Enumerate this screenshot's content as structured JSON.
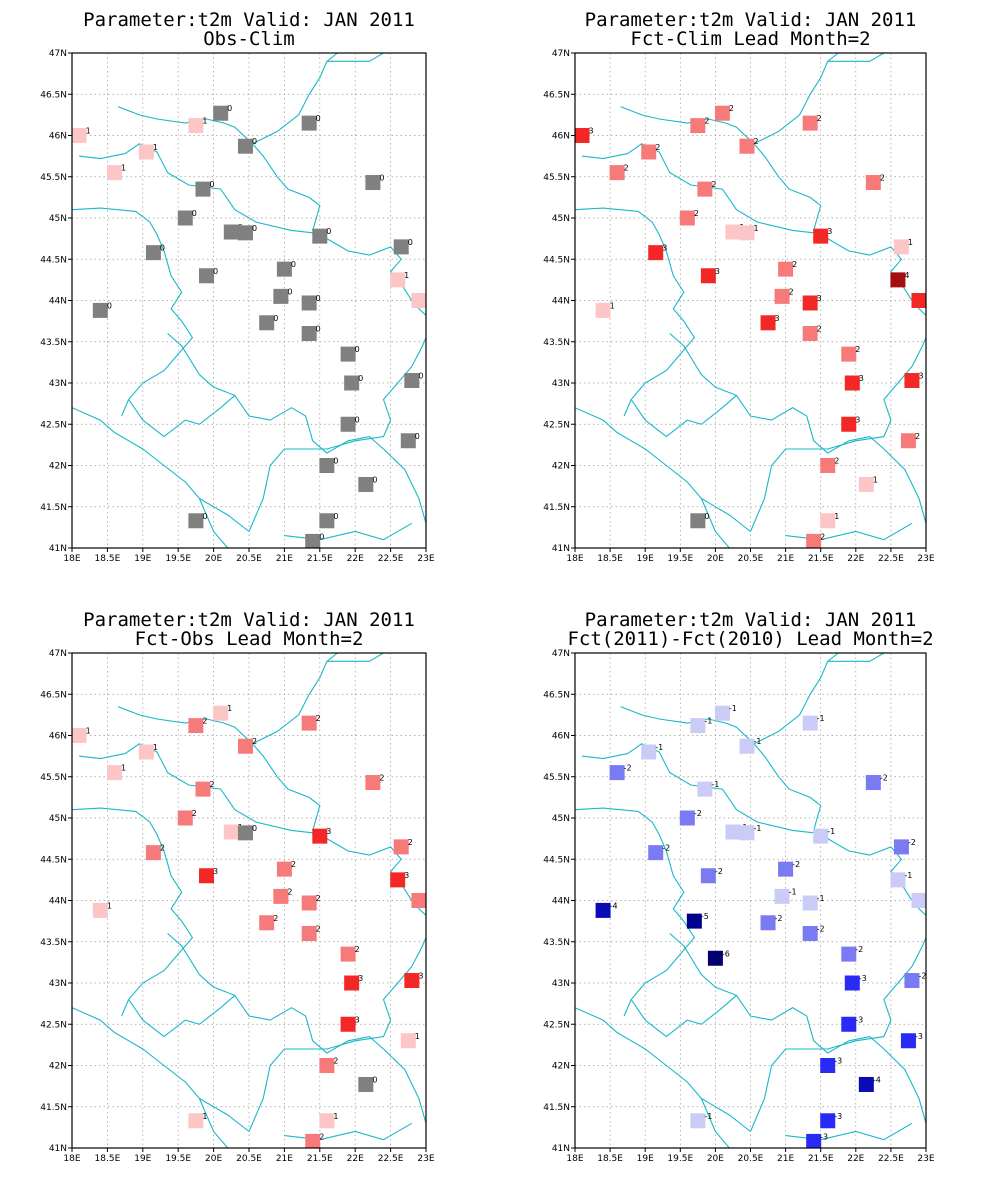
{
  "lon_ticks": [
    "18E",
    "18.5E",
    "19E",
    "19.5E",
    "20E",
    "20.5E",
    "21E",
    "21.5E",
    "22E",
    "22.5E",
    "23E"
  ],
  "lat_ticks": [
    "47N",
    "46.5N",
    "46N",
    "45.5N",
    "45N",
    "44.5N",
    "44N",
    "43.5N",
    "43N",
    "42.5N",
    "42N",
    "41.5N",
    "41N"
  ],
  "chart_data": [
    {
      "type": "scatter",
      "title": "Parameter:t2m Valid: JAN 2011",
      "subtitle": "Obs-Clim",
      "xlim": [
        18,
        23
      ],
      "ylim": [
        41,
        47
      ],
      "grid": true,
      "points": [
        {
          "lon": 18.1,
          "lat": 46.0,
          "v": 1
        },
        {
          "lon": 18.6,
          "lat": 45.55,
          "v": 1
        },
        {
          "lon": 19.05,
          "lat": 45.8,
          "v": 1
        },
        {
          "lon": 19.75,
          "lat": 46.12,
          "v": 1
        },
        {
          "lon": 20.1,
          "lat": 46.27,
          "v": 0
        },
        {
          "lon": 20.45,
          "lat": 45.87,
          "v": 0
        },
        {
          "lon": 21.35,
          "lat": 46.15,
          "v": 0
        },
        {
          "lon": 19.85,
          "lat": 45.35,
          "v": 0
        },
        {
          "lon": 22.25,
          "lat": 45.43,
          "v": 0
        },
        {
          "lon": 19.6,
          "lat": 45.0,
          "v": 0
        },
        {
          "lon": 20.25,
          "lat": 44.83,
          "v": 0
        },
        {
          "lon": 20.45,
          "lat": 44.82,
          "v": 0
        },
        {
          "lon": 21.5,
          "lat": 44.78,
          "v": 0
        },
        {
          "lon": 22.65,
          "lat": 44.65,
          "v": 0
        },
        {
          "lon": 19.15,
          "lat": 44.58,
          "v": 0
        },
        {
          "lon": 19.9,
          "lat": 44.3,
          "v": 0
        },
        {
          "lon": 21.0,
          "lat": 44.38,
          "v": 0
        },
        {
          "lon": 22.6,
          "lat": 44.25,
          "v": 1
        },
        {
          "lon": 22.9,
          "lat": 44.0,
          "v": 1
        },
        {
          "lon": 18.4,
          "lat": 43.88,
          "v": 0
        },
        {
          "lon": 20.95,
          "lat": 44.05,
          "v": 0
        },
        {
          "lon": 21.35,
          "lat": 43.97,
          "v": 0
        },
        {
          "lon": 20.75,
          "lat": 43.73,
          "v": 0
        },
        {
          "lon": 21.35,
          "lat": 43.6,
          "v": 0
        },
        {
          "lon": 21.9,
          "lat": 43.35,
          "v": 0
        },
        {
          "lon": 21.95,
          "lat": 43.0,
          "v": 0
        },
        {
          "lon": 22.8,
          "lat": 43.03,
          "v": 0
        },
        {
          "lon": 21.9,
          "lat": 42.5,
          "v": 0
        },
        {
          "lon": 22.75,
          "lat": 42.3,
          "v": 0
        },
        {
          "lon": 21.6,
          "lat": 42.0,
          "v": 0
        },
        {
          "lon": 22.15,
          "lat": 41.77,
          "v": 0
        },
        {
          "lon": 19.75,
          "lat": 41.33,
          "v": 0
        },
        {
          "lon": 21.6,
          "lat": 41.33,
          "v": 0
        },
        {
          "lon": 21.4,
          "lat": 41.08,
          "v": 0
        }
      ]
    },
    {
      "type": "scatter",
      "title": "Parameter:t2m Valid: JAN 2011",
      "subtitle": "Fct-Clim Lead Month=2",
      "xlim": [
        18,
        23
      ],
      "ylim": [
        41,
        47
      ],
      "grid": true,
      "points": [
        {
          "lon": 18.1,
          "lat": 46.0,
          "v": 3
        },
        {
          "lon": 18.6,
          "lat": 45.55,
          "v": 2
        },
        {
          "lon": 19.05,
          "lat": 45.8,
          "v": 2
        },
        {
          "lon": 19.75,
          "lat": 46.12,
          "v": 2
        },
        {
          "lon": 20.1,
          "lat": 46.27,
          "v": 2
        },
        {
          "lon": 20.45,
          "lat": 45.87,
          "v": 2
        },
        {
          "lon": 21.35,
          "lat": 46.15,
          "v": 2
        },
        {
          "lon": 19.85,
          "lat": 45.35,
          "v": 2
        },
        {
          "lon": 22.25,
          "lat": 45.43,
          "v": 2
        },
        {
          "lon": 19.6,
          "lat": 45.0,
          "v": 2
        },
        {
          "lon": 20.25,
          "lat": 44.83,
          "v": 1
        },
        {
          "lon": 20.45,
          "lat": 44.82,
          "v": 1
        },
        {
          "lon": 21.5,
          "lat": 44.78,
          "v": 3
        },
        {
          "lon": 22.65,
          "lat": 44.65,
          "v": 1
        },
        {
          "lon": 19.15,
          "lat": 44.58,
          "v": 3
        },
        {
          "lon": 19.9,
          "lat": 44.3,
          "v": 3
        },
        {
          "lon": 21.0,
          "lat": 44.38,
          "v": 2
        },
        {
          "lon": 22.6,
          "lat": 44.25,
          "v": 4
        },
        {
          "lon": 22.9,
          "lat": 44.0,
          "v": 3
        },
        {
          "lon": 18.4,
          "lat": 43.88,
          "v": 1
        },
        {
          "lon": 20.95,
          "lat": 44.05,
          "v": 2
        },
        {
          "lon": 21.35,
          "lat": 43.97,
          "v": 3
        },
        {
          "lon": 20.75,
          "lat": 43.73,
          "v": 3
        },
        {
          "lon": 21.35,
          "lat": 43.6,
          "v": 2
        },
        {
          "lon": 21.9,
          "lat": 43.35,
          "v": 2
        },
        {
          "lon": 21.95,
          "lat": 43.0,
          "v": 3
        },
        {
          "lon": 22.8,
          "lat": 43.03,
          "v": 3
        },
        {
          "lon": 21.9,
          "lat": 42.5,
          "v": 3
        },
        {
          "lon": 22.75,
          "lat": 42.3,
          "v": 2
        },
        {
          "lon": 21.6,
          "lat": 42.0,
          "v": 2
        },
        {
          "lon": 22.15,
          "lat": 41.77,
          "v": 1
        },
        {
          "lon": 19.75,
          "lat": 41.33,
          "v": 0
        },
        {
          "lon": 21.6,
          "lat": 41.33,
          "v": 1
        },
        {
          "lon": 21.4,
          "lat": 41.08,
          "v": 2
        }
      ]
    },
    {
      "type": "scatter",
      "title": "Parameter:t2m Valid: JAN 2011",
      "subtitle": "Fct-Obs Lead Month=2",
      "xlim": [
        18,
        23
      ],
      "ylim": [
        41,
        47
      ],
      "grid": true,
      "points": [
        {
          "lon": 18.1,
          "lat": 46.0,
          "v": 1
        },
        {
          "lon": 18.6,
          "lat": 45.55,
          "v": 1
        },
        {
          "lon": 19.05,
          "lat": 45.8,
          "v": 1
        },
        {
          "lon": 19.75,
          "lat": 46.12,
          "v": 2
        },
        {
          "lon": 20.1,
          "lat": 46.27,
          "v": 1
        },
        {
          "lon": 20.45,
          "lat": 45.87,
          "v": 2
        },
        {
          "lon": 21.35,
          "lat": 46.15,
          "v": 2
        },
        {
          "lon": 19.85,
          "lat": 45.35,
          "v": 2
        },
        {
          "lon": 22.25,
          "lat": 45.43,
          "v": 2
        },
        {
          "lon": 19.6,
          "lat": 45.0,
          "v": 2
        },
        {
          "lon": 20.25,
          "lat": 44.83,
          "v": 1
        },
        {
          "lon": 20.45,
          "lat": 44.82,
          "v": 0
        },
        {
          "lon": 21.5,
          "lat": 44.78,
          "v": 3
        },
        {
          "lon": 22.65,
          "lat": 44.65,
          "v": 2
        },
        {
          "lon": 19.15,
          "lat": 44.58,
          "v": 2
        },
        {
          "lon": 19.9,
          "lat": 44.3,
          "v": 3
        },
        {
          "lon": 21.0,
          "lat": 44.38,
          "v": 2
        },
        {
          "lon": 22.6,
          "lat": 44.25,
          "v": 3
        },
        {
          "lon": 22.9,
          "lat": 44.0,
          "v": 2
        },
        {
          "lon": 18.4,
          "lat": 43.88,
          "v": 1
        },
        {
          "lon": 20.95,
          "lat": 44.05,
          "v": 2
        },
        {
          "lon": 21.35,
          "lat": 43.97,
          "v": 2
        },
        {
          "lon": 20.75,
          "lat": 43.73,
          "v": 2
        },
        {
          "lon": 21.35,
          "lat": 43.6,
          "v": 2
        },
        {
          "lon": 21.9,
          "lat": 43.35,
          "v": 2
        },
        {
          "lon": 21.95,
          "lat": 43.0,
          "v": 3
        },
        {
          "lon": 22.8,
          "lat": 43.03,
          "v": 3
        },
        {
          "lon": 21.9,
          "lat": 42.5,
          "v": 3
        },
        {
          "lon": 22.75,
          "lat": 42.3,
          "v": 1
        },
        {
          "lon": 21.6,
          "lat": 42.0,
          "v": 2
        },
        {
          "lon": 22.15,
          "lat": 41.77,
          "v": 0
        },
        {
          "lon": 19.75,
          "lat": 41.33,
          "v": 1
        },
        {
          "lon": 21.6,
          "lat": 41.33,
          "v": 1
        },
        {
          "lon": 21.4,
          "lat": 41.08,
          "v": 2
        }
      ]
    },
    {
      "type": "scatter",
      "title": "Parameter:t2m Valid: JAN 2011",
      "subtitle": "Fct(2011)-Fct(2010) Lead Month=2",
      "xlim": [
        18,
        23
      ],
      "ylim": [
        41,
        47
      ],
      "grid": true,
      "points": [
        {
          "lon": 18.6,
          "lat": 45.55,
          "v": -2
        },
        {
          "lon": 19.05,
          "lat": 45.8,
          "v": -1
        },
        {
          "lon": 19.75,
          "lat": 46.12,
          "v": -1
        },
        {
          "lon": 20.1,
          "lat": 46.27,
          "v": -1
        },
        {
          "lon": 20.45,
          "lat": 45.87,
          "v": -1
        },
        {
          "lon": 21.35,
          "lat": 46.15,
          "v": -1
        },
        {
          "lon": 19.85,
          "lat": 45.35,
          "v": -1
        },
        {
          "lon": 22.25,
          "lat": 45.43,
          "v": -2
        },
        {
          "lon": 19.6,
          "lat": 45.0,
          "v": -2
        },
        {
          "lon": 20.25,
          "lat": 44.83,
          "v": -1
        },
        {
          "lon": 20.45,
          "lat": 44.82,
          "v": -1
        },
        {
          "lon": 21.5,
          "lat": 44.78,
          "v": -1
        },
        {
          "lon": 22.65,
          "lat": 44.65,
          "v": -2
        },
        {
          "lon": 19.15,
          "lat": 44.58,
          "v": -2
        },
        {
          "lon": 19.9,
          "lat": 44.3,
          "v": -2
        },
        {
          "lon": 21.0,
          "lat": 44.38,
          "v": -2
        },
        {
          "lon": 22.6,
          "lat": 44.25,
          "v": -1
        },
        {
          "lon": 22.9,
          "lat": 44.0,
          "v": -1
        },
        {
          "lon": 18.4,
          "lat": 43.88,
          "v": -4
        },
        {
          "lon": 20.95,
          "lat": 44.05,
          "v": -1
        },
        {
          "lon": 21.35,
          "lat": 43.97,
          "v": -1
        },
        {
          "lon": 19.7,
          "lat": 43.75,
          "v": -5
        },
        {
          "lon": 20.75,
          "lat": 43.73,
          "v": -2
        },
        {
          "lon": 21.35,
          "lat": 43.6,
          "v": -2
        },
        {
          "lon": 20.0,
          "lat": 43.3,
          "v": -6
        },
        {
          "lon": 21.9,
          "lat": 43.35,
          "v": -2
        },
        {
          "lon": 21.95,
          "lat": 43.0,
          "v": -3
        },
        {
          "lon": 22.8,
          "lat": 43.03,
          "v": -2
        },
        {
          "lon": 21.9,
          "lat": 42.5,
          "v": -3
        },
        {
          "lon": 22.75,
          "lat": 42.3,
          "v": -3
        },
        {
          "lon": 21.6,
          "lat": 42.0,
          "v": -3
        },
        {
          "lon": 22.15,
          "lat": 41.77,
          "v": -4
        },
        {
          "lon": 19.75,
          "lat": 41.33,
          "v": -1
        },
        {
          "lon": 21.6,
          "lat": 41.33,
          "v": -3
        },
        {
          "lon": 21.4,
          "lat": 41.08,
          "v": -3
        }
      ]
    }
  ]
}
